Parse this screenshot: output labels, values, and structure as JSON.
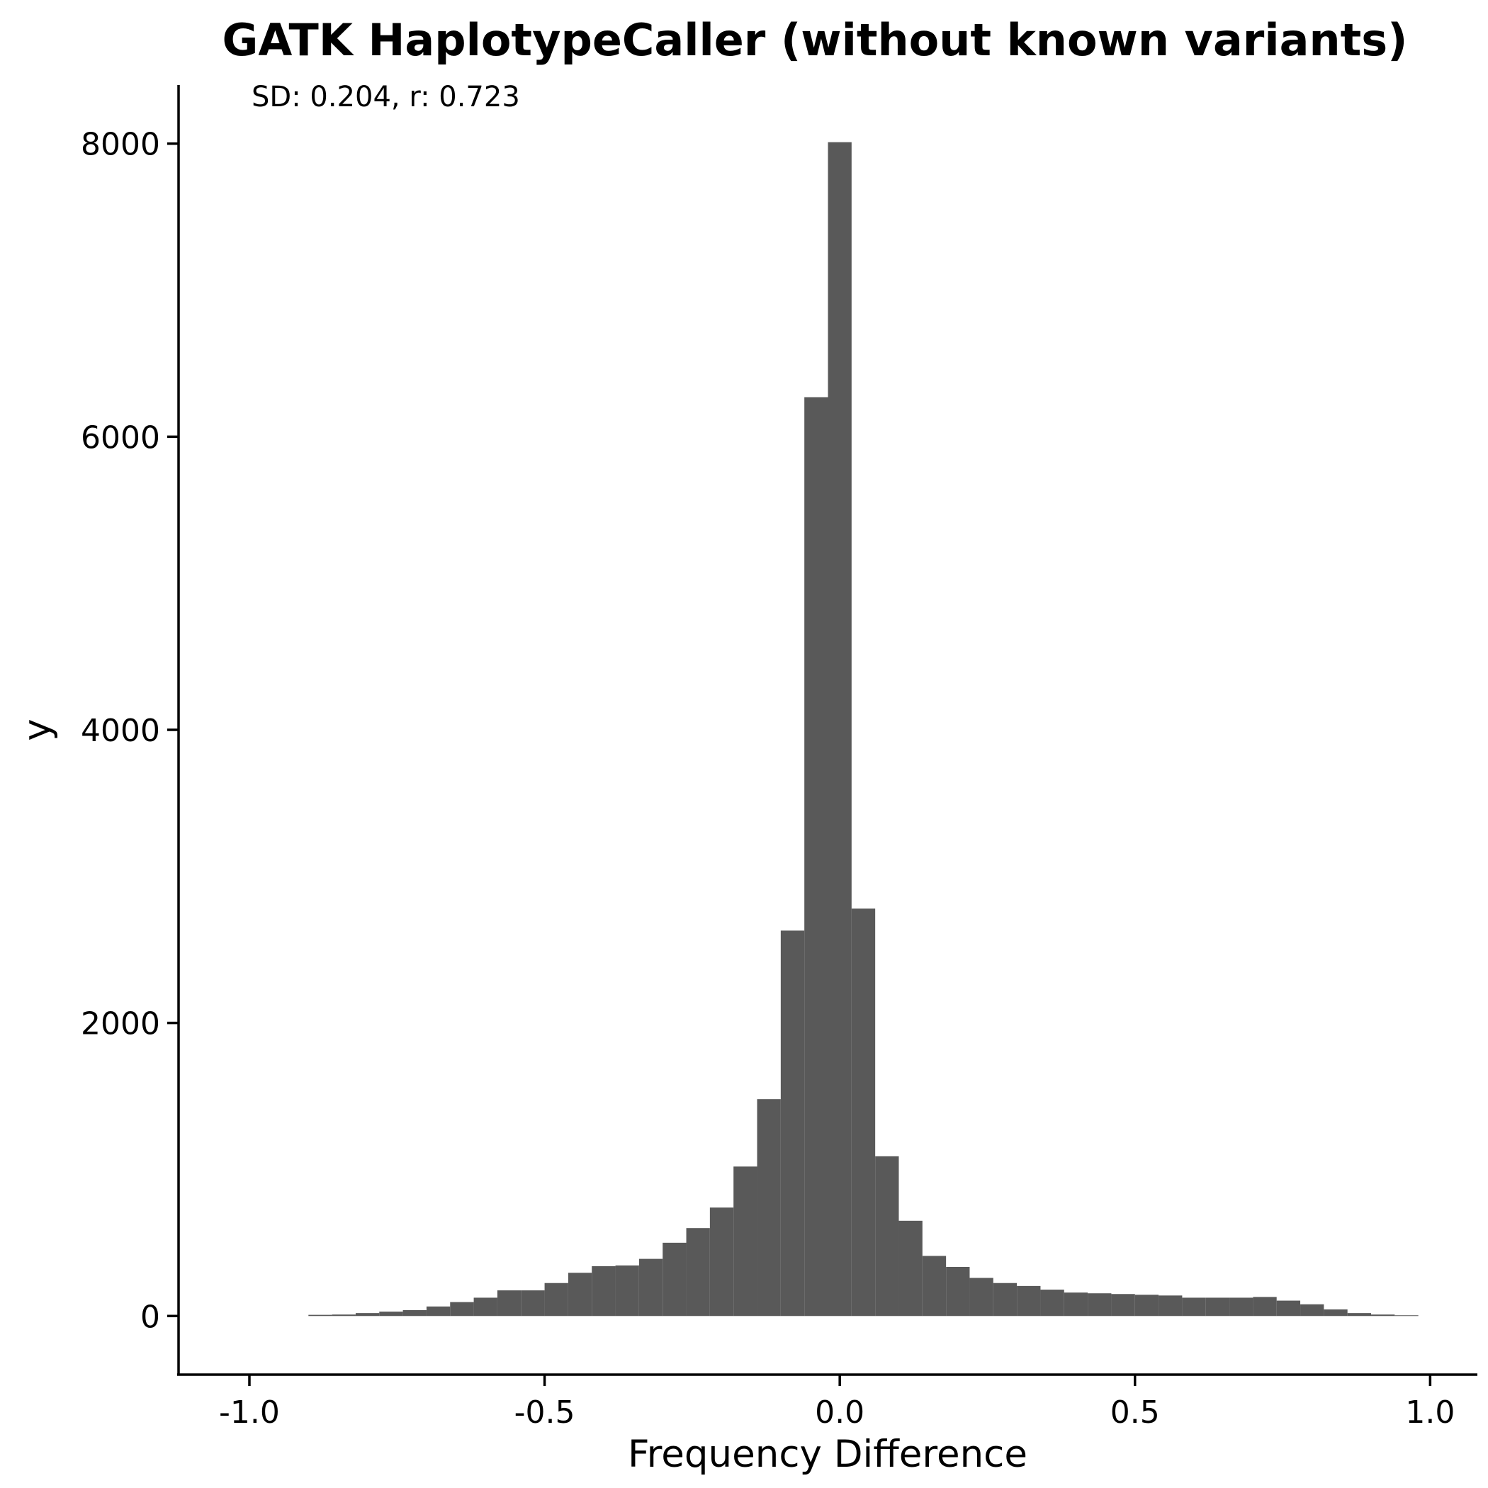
{
  "chart_data": {
    "type": "bar",
    "title": "GATK HaplotypeCaller (without known variants)",
    "annotation": "SD: 0.204, r: 0.723",
    "xlabel": "Frequency Difference",
    "ylabel": "y",
    "xlim": [
      -1.12,
      1.08
    ],
    "ylim": [
      -400,
      8400
    ],
    "xticks": [
      -1.0,
      -0.5,
      0.0,
      0.5,
      1.0
    ],
    "xtick_labels": [
      "-1.0",
      "-0.5",
      "0.0",
      "0.5",
      "1.0"
    ],
    "yticks": [
      0,
      2000,
      4000,
      6000,
      8000
    ],
    "ytick_labels": [
      "0",
      "2000",
      "4000",
      "6000",
      "8000"
    ],
    "bar_color": "#595959",
    "bin_edges": [
      -0.9,
      -0.86,
      -0.82,
      -0.78,
      -0.74,
      -0.7,
      -0.66,
      -0.62,
      -0.58,
      -0.54,
      -0.5,
      -0.46,
      -0.42,
      -0.38,
      -0.34,
      -0.3,
      -0.26,
      -0.22,
      -0.18,
      -0.14,
      -0.1,
      -0.06,
      -0.02,
      0.02,
      0.06,
      0.1,
      0.14,
      0.18,
      0.22,
      0.26,
      0.3,
      0.34,
      0.38,
      0.42,
      0.46,
      0.5,
      0.54,
      0.58,
      0.62,
      0.66,
      0.7,
      0.74,
      0.78,
      0.82,
      0.86,
      0.9,
      0.94,
      0.98
    ],
    "values": [
      8,
      10,
      20,
      30,
      40,
      65,
      95,
      125,
      175,
      175,
      225,
      295,
      340,
      345,
      390,
      500,
      600,
      740,
      1020,
      1480,
      2630,
      6270,
      8010,
      2780,
      1090,
      650,
      410,
      335,
      260,
      225,
      205,
      180,
      160,
      155,
      150,
      145,
      140,
      125,
      125,
      125,
      130,
      105,
      80,
      45,
      20,
      10,
      5
    ]
  }
}
